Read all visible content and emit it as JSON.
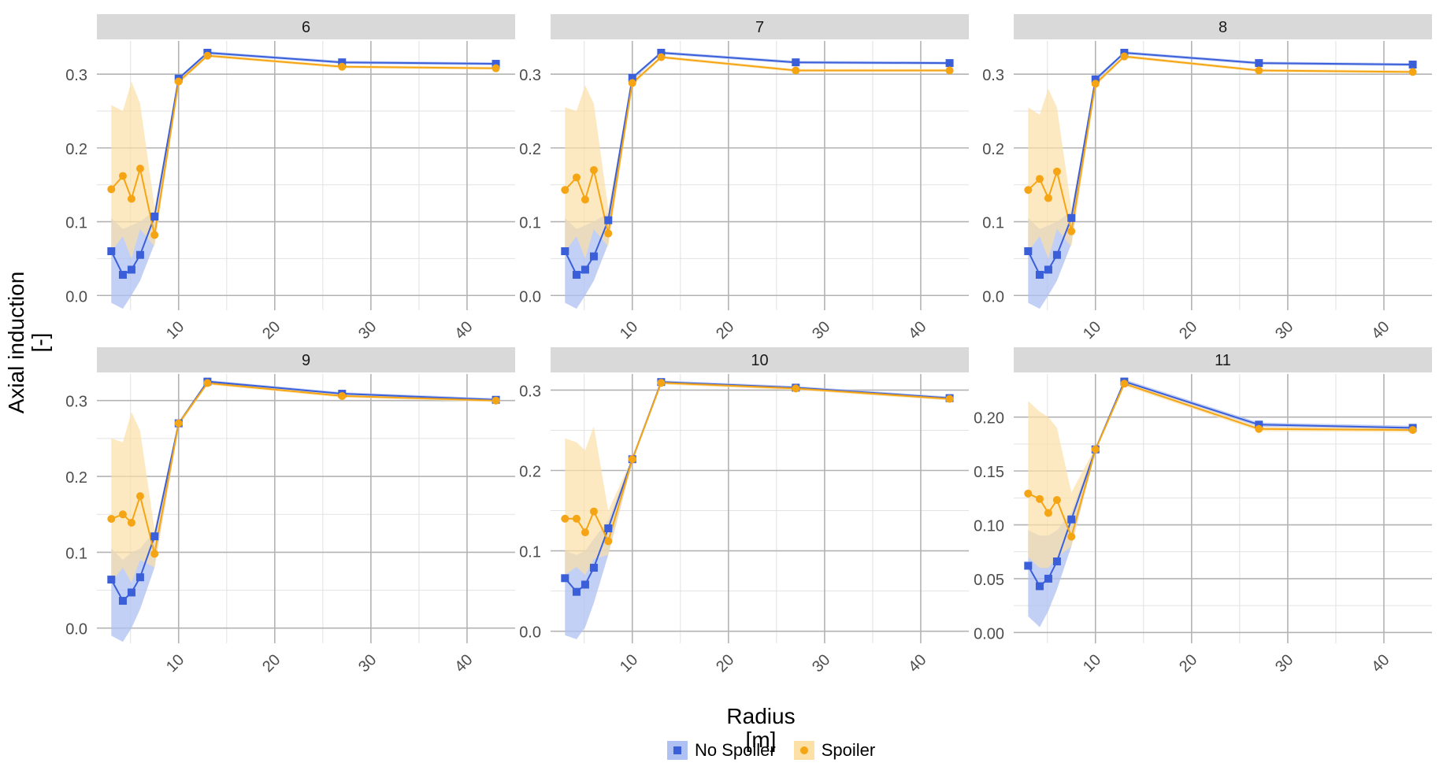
{
  "chart_data": {
    "type": "line",
    "layout": "facet-grid 2x3",
    "ylabel": "Axial induction",
    "ylabel_unit": "[-]",
    "xlabel": "Radius",
    "xlabel_unit": "[m]",
    "xlim": [
      1.5,
      45
    ],
    "x_ticks": [
      10,
      20,
      30,
      40
    ],
    "x_tick_labels": [
      "10",
      "20",
      "30",
      "40"
    ],
    "x": [
      3,
      4.2,
      5.1,
      6,
      7.5,
      10,
      13,
      27,
      43
    ],
    "legend": {
      "placement": "bottom",
      "entries": [
        {
          "name": "No Spoiler",
          "color": "#3A5FD9",
          "band": "#AFC0F2",
          "marker": "square"
        },
        {
          "name": "Spoiler",
          "color": "#F5A513",
          "band": "#FCE0A6",
          "marker": "circle"
        }
      ]
    },
    "panels": [
      {
        "title": "6",
        "ylim": [
          -0.02,
          0.345
        ],
        "y_ticks": [
          0.0,
          0.1,
          0.2,
          0.3
        ],
        "y_tick_labels": [
          "0.0",
          "0.1",
          "0.2",
          "0.3"
        ],
        "series": [
          {
            "name": "No Spoiler",
            "values": [
              0.06,
              0.028,
              0.035,
              0.055,
              0.107,
              0.294,
              0.329,
              0.316,
              0.314
            ],
            "lower": [
              -0.01,
              -0.018,
              0.0,
              0.02,
              0.07,
              0.29,
              0.327,
              0.314,
              0.312
            ],
            "upper": [
              0.105,
              0.09,
              0.095,
              0.1,
              0.115,
              0.296,
              0.331,
              0.318,
              0.316
            ]
          },
          {
            "name": "Spoiler",
            "values": [
              0.144,
              0.162,
              0.131,
              0.172,
              0.082,
              0.29,
              0.325,
              0.31,
              0.308
            ],
            "lower": [
              0.06,
              0.08,
              0.05,
              0.09,
              0.066,
              0.286,
              0.323,
              0.308,
              0.306
            ],
            "upper": [
              0.258,
              0.25,
              0.29,
              0.26,
              0.12,
              0.292,
              0.327,
              0.312,
              0.31
            ]
          }
        ]
      },
      {
        "title": "7",
        "ylim": [
          -0.02,
          0.345
        ],
        "y_ticks": [
          0.0,
          0.1,
          0.2,
          0.3
        ],
        "y_tick_labels": [
          "0.0",
          "0.1",
          "0.2",
          "0.3"
        ],
        "series": [
          {
            "name": "No Spoiler",
            "values": [
              0.06,
              0.028,
              0.035,
              0.053,
              0.102,
              0.295,
              0.329,
              0.316,
              0.315
            ],
            "lower": [
              -0.01,
              -0.018,
              0.0,
              0.02,
              0.07,
              0.291,
              0.327,
              0.314,
              0.313
            ],
            "upper": [
              0.105,
              0.09,
              0.095,
              0.1,
              0.112,
              0.297,
              0.331,
              0.318,
              0.317
            ]
          },
          {
            "name": "Spoiler",
            "values": [
              0.143,
              0.16,
              0.13,
              0.17,
              0.084,
              0.288,
              0.323,
              0.305,
              0.305
            ],
            "lower": [
              0.06,
              0.08,
              0.05,
              0.09,
              0.066,
              0.284,
              0.321,
              0.303,
              0.303
            ],
            "upper": [
              0.255,
              0.25,
              0.285,
              0.26,
              0.118,
              0.29,
              0.325,
              0.307,
              0.307
            ]
          }
        ]
      },
      {
        "title": "8",
        "ylim": [
          -0.02,
          0.345
        ],
        "y_ticks": [
          0.0,
          0.1,
          0.2,
          0.3
        ],
        "y_tick_labels": [
          "0.0",
          "0.1",
          "0.2",
          "0.3"
        ],
        "series": [
          {
            "name": "No Spoiler",
            "values": [
              0.06,
              0.028,
              0.035,
              0.055,
              0.105,
              0.293,
              0.329,
              0.315,
              0.313
            ],
            "lower": [
              -0.01,
              -0.018,
              0.0,
              0.02,
              0.07,
              0.289,
              0.327,
              0.313,
              0.311
            ],
            "upper": [
              0.105,
              0.09,
              0.095,
              0.1,
              0.114,
              0.295,
              0.331,
              0.317,
              0.315
            ]
          },
          {
            "name": "Spoiler",
            "values": [
              0.143,
              0.158,
              0.132,
              0.168,
              0.087,
              0.287,
              0.324,
              0.305,
              0.303
            ],
            "lower": [
              0.06,
              0.08,
              0.05,
              0.09,
              0.066,
              0.283,
              0.322,
              0.303,
              0.301
            ],
            "upper": [
              0.255,
              0.245,
              0.28,
              0.255,
              0.118,
              0.289,
              0.326,
              0.307,
              0.305
            ]
          }
        ]
      },
      {
        "title": "9",
        "ylim": [
          -0.02,
          0.335
        ],
        "y_ticks": [
          0.0,
          0.1,
          0.2,
          0.3
        ],
        "y_tick_labels": [
          "0.0",
          "0.1",
          "0.2",
          "0.3"
        ],
        "series": [
          {
            "name": "No Spoiler",
            "values": [
              0.064,
              0.036,
              0.047,
              0.067,
              0.121,
              0.27,
              0.325,
              0.309,
              0.301
            ],
            "lower": [
              -0.01,
              -0.018,
              0.0,
              0.025,
              0.08,
              0.266,
              0.323,
              0.307,
              0.299
            ],
            "upper": [
              0.105,
              0.09,
              0.1,
              0.105,
              0.128,
              0.272,
              0.327,
              0.311,
              0.303
            ]
          },
          {
            "name": "Spoiler",
            "values": [
              0.144,
              0.15,
              0.139,
              0.174,
              0.098,
              0.27,
              0.323,
              0.306,
              0.3
            ],
            "lower": [
              0.06,
              0.08,
              0.06,
              0.09,
              0.08,
              0.266,
              0.321,
              0.304,
              0.298
            ],
            "upper": [
              0.25,
              0.245,
              0.285,
              0.26,
              0.13,
              0.272,
              0.325,
              0.308,
              0.302
            ]
          }
        ]
      },
      {
        "title": "10",
        "ylim": [
          -0.015,
          0.32
        ],
        "y_ticks": [
          0.0,
          0.1,
          0.2,
          0.3
        ],
        "y_tick_labels": [
          "0.0",
          "0.1",
          "0.2",
          "0.3"
        ],
        "series": [
          {
            "name": "No Spoiler",
            "values": [
              0.066,
              0.049,
              0.058,
              0.079,
              0.128,
              0.214,
              0.31,
              0.303,
              0.29
            ],
            "lower": [
              -0.005,
              -0.01,
              0.005,
              0.035,
              0.095,
              0.21,
              0.308,
              0.301,
              0.288
            ],
            "upper": [
              0.1,
              0.095,
              0.1,
              0.115,
              0.138,
              0.216,
              0.312,
              0.305,
              0.292
            ]
          },
          {
            "name": "Spoiler",
            "values": [
              0.14,
              0.14,
              0.123,
              0.149,
              0.112,
              0.214,
              0.309,
              0.302,
              0.289
            ],
            "lower": [
              0.07,
              0.08,
              0.07,
              0.09,
              0.095,
              0.21,
              0.307,
              0.3,
              0.287
            ],
            "upper": [
              0.24,
              0.235,
              0.225,
              0.255,
              0.15,
              0.216,
              0.311,
              0.304,
              0.291
            ]
          }
        ]
      },
      {
        "title": "11",
        "ylim": [
          -0.01,
          0.24
        ],
        "y_ticks": [
          0.0,
          0.05,
          0.1,
          0.15,
          0.2
        ],
        "y_tick_labels": [
          "0.00",
          "0.05",
          "0.10",
          "0.15",
          "0.20"
        ],
        "series": [
          {
            "name": "No Spoiler",
            "values": [
              0.062,
              0.043,
              0.05,
              0.066,
              0.105,
              0.17,
              0.233,
              0.193,
              0.19
            ],
            "lower": [
              0.015,
              0.005,
              0.02,
              0.04,
              0.08,
              0.168,
              0.231,
              0.191,
              0.188
            ],
            "upper": [
              0.095,
              0.09,
              0.09,
              0.095,
              0.112,
              0.172,
              0.235,
              0.195,
              0.192
            ]
          },
          {
            "name": "Spoiler",
            "values": [
              0.129,
              0.124,
              0.111,
              0.123,
              0.089,
              0.17,
              0.231,
              0.189,
              0.188
            ],
            "lower": [
              0.07,
              0.06,
              0.06,
              0.07,
              0.08,
              0.168,
              0.229,
              0.187,
              0.186
            ],
            "upper": [
              0.215,
              0.205,
              0.2,
              0.19,
              0.13,
              0.172,
              0.233,
              0.191,
              0.19
            ]
          }
        ]
      }
    ]
  }
}
